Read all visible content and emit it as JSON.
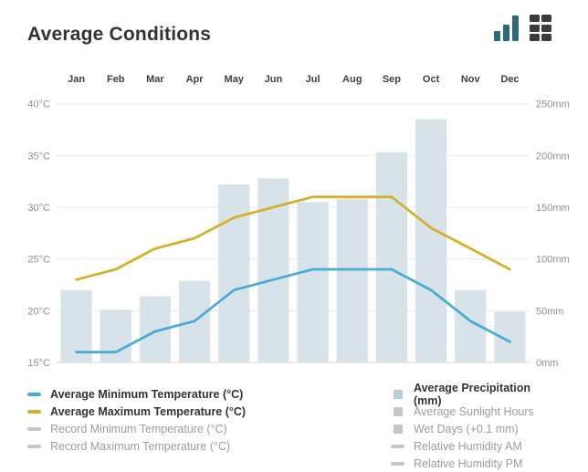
{
  "header": {
    "title": "Average Conditions",
    "icons": [
      {
        "name": "bar-chart-view-icon"
      },
      {
        "name": "table-view-icon"
      }
    ]
  },
  "colors": {
    "min_temp_line": "#49acd3",
    "max_temp_line": "#d4b02e",
    "precip_bar": "#d8e2e9",
    "precip_legend_square": "#b3cfe1",
    "inactive_marker": "#c6c6c6",
    "teal_icon": "#2d6b7a",
    "grid_icon": "#3b3b3b",
    "gridline": "#e9e9e9",
    "baseline": "#d5d5d5"
  },
  "chart_data": {
    "type": "mixed-bar-line",
    "title": "Average Conditions",
    "categories": [
      "Jan",
      "Feb",
      "Mar",
      "Apr",
      "May",
      "Jun",
      "Jul",
      "Aug",
      "Sep",
      "Oct",
      "Nov",
      "Dec"
    ],
    "series": [
      {
        "name": "Average Precipitation (mm)",
        "type": "bar",
        "unit": "mm",
        "axis": "right",
        "values": [
          70,
          51,
          64,
          79,
          172,
          178,
          155,
          158,
          203,
          235,
          70,
          49
        ]
      },
      {
        "name": "Average Minimum Temperature (°C)",
        "type": "line",
        "unit": "°C",
        "axis": "left",
        "values": [
          16,
          16,
          18,
          19,
          22,
          23,
          24,
          24,
          24,
          22,
          19,
          17
        ]
      },
      {
        "name": "Average Maximum Temperature (°C)",
        "type": "line",
        "unit": "°C",
        "axis": "left",
        "values": [
          23,
          24,
          26,
          27,
          29,
          30,
          31,
          31,
          31,
          28,
          26,
          24
        ]
      }
    ],
    "left_axis": {
      "label_unit": "°C",
      "range": [
        15,
        40
      ],
      "ticks": [
        "40°C",
        "35°C",
        "30°C",
        "25°C",
        "20°C",
        "15°C"
      ]
    },
    "right_axis": {
      "label_unit": "mm",
      "range": [
        0,
        250
      ],
      "ticks": [
        "250mm",
        "200mm",
        "150mm",
        "100mm",
        "50mm",
        "0mm"
      ]
    },
    "grid": true,
    "legend_position": "bottom"
  },
  "legend": {
    "left": [
      {
        "label": "Average Minimum Temperature (°C)",
        "marker": "line",
        "active": true,
        "color": "#49acd3"
      },
      {
        "label": "Average Maximum Temperature (°C)",
        "marker": "line",
        "active": true,
        "color": "#d4b02e"
      },
      {
        "label": "Record Minimum Temperature (°C)",
        "marker": "line",
        "active": false,
        "color": "#c6c6c6"
      },
      {
        "label": "Record Maximum Temperature (°C)",
        "marker": "line",
        "active": false,
        "color": "#c6c6c6"
      }
    ],
    "right": [
      {
        "label": "Average Precipitation (mm)",
        "marker": "square",
        "active": true,
        "color": "#b3cfe1"
      },
      {
        "label": "Average Sunlight Hours",
        "marker": "square",
        "active": false,
        "color": "#c6c6c6"
      },
      {
        "label": "Wet Days (+0.1 mm)",
        "marker": "square",
        "active": false,
        "color": "#c6c6c6"
      },
      {
        "label": "Relative Humidity AM",
        "marker": "line",
        "active": false,
        "color": "#c6c6c6"
      },
      {
        "label": "Relative Humidity PM",
        "marker": "line",
        "active": false,
        "color": "#c6c6c6"
      }
    ]
  }
}
